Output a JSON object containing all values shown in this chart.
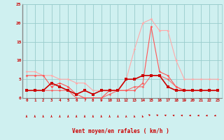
{
  "x_labels": [
    0,
    1,
    2,
    3,
    4,
    5,
    6,
    7,
    8,
    9,
    10,
    11,
    12,
    13,
    14,
    15,
    16,
    17,
    18,
    19,
    20,
    21,
    22,
    23
  ],
  "xlim": [
    -0.5,
    23.5
  ],
  "ylim": [
    0,
    25
  ],
  "yticks": [
    0,
    5,
    10,
    15,
    20,
    25
  ],
  "xlabel": "Vent moyen/en rafales ( km/h )",
  "bg_color": "#cff0f0",
  "grid_color": "#99cccc",
  "line_color_dark": "#cc0000",
  "line_color_mid": "#ff5555",
  "line_color_light": "#ffaaaa",
  "series": {
    "avg_wind": [
      2,
      2,
      2,
      4,
      3,
      2,
      1,
      2,
      1,
      2,
      2,
      2,
      5,
      5,
      6,
      6,
      6,
      3,
      2,
      2,
      2,
      2,
      2,
      2
    ],
    "gust_wind": [
      7,
      7,
      6,
      6,
      5,
      5,
      4,
      4,
      2,
      2,
      2,
      2,
      5,
      13,
      20,
      21,
      18,
      18,
      10,
      5,
      5,
      5,
      5,
      5
    ],
    "third_line": [
      6,
      6,
      6,
      3,
      4,
      3,
      1,
      0,
      0,
      0,
      2,
      2,
      2,
      2,
      4,
      19,
      7,
      6,
      3,
      2,
      2,
      2,
      2,
      2
    ],
    "fourth_line": [
      2,
      2,
      2,
      2,
      2,
      2,
      0,
      0,
      0,
      0,
      1,
      2,
      2,
      3,
      3,
      6,
      6,
      5,
      3,
      2,
      2,
      2,
      2,
      2
    ],
    "arrow_deg": [
      180,
      180,
      180,
      180,
      180,
      180,
      180,
      180,
      180,
      180,
      180,
      180,
      185,
      190,
      200,
      225,
      240,
      250,
      260,
      265,
      270,
      275,
      280,
      285
    ]
  }
}
